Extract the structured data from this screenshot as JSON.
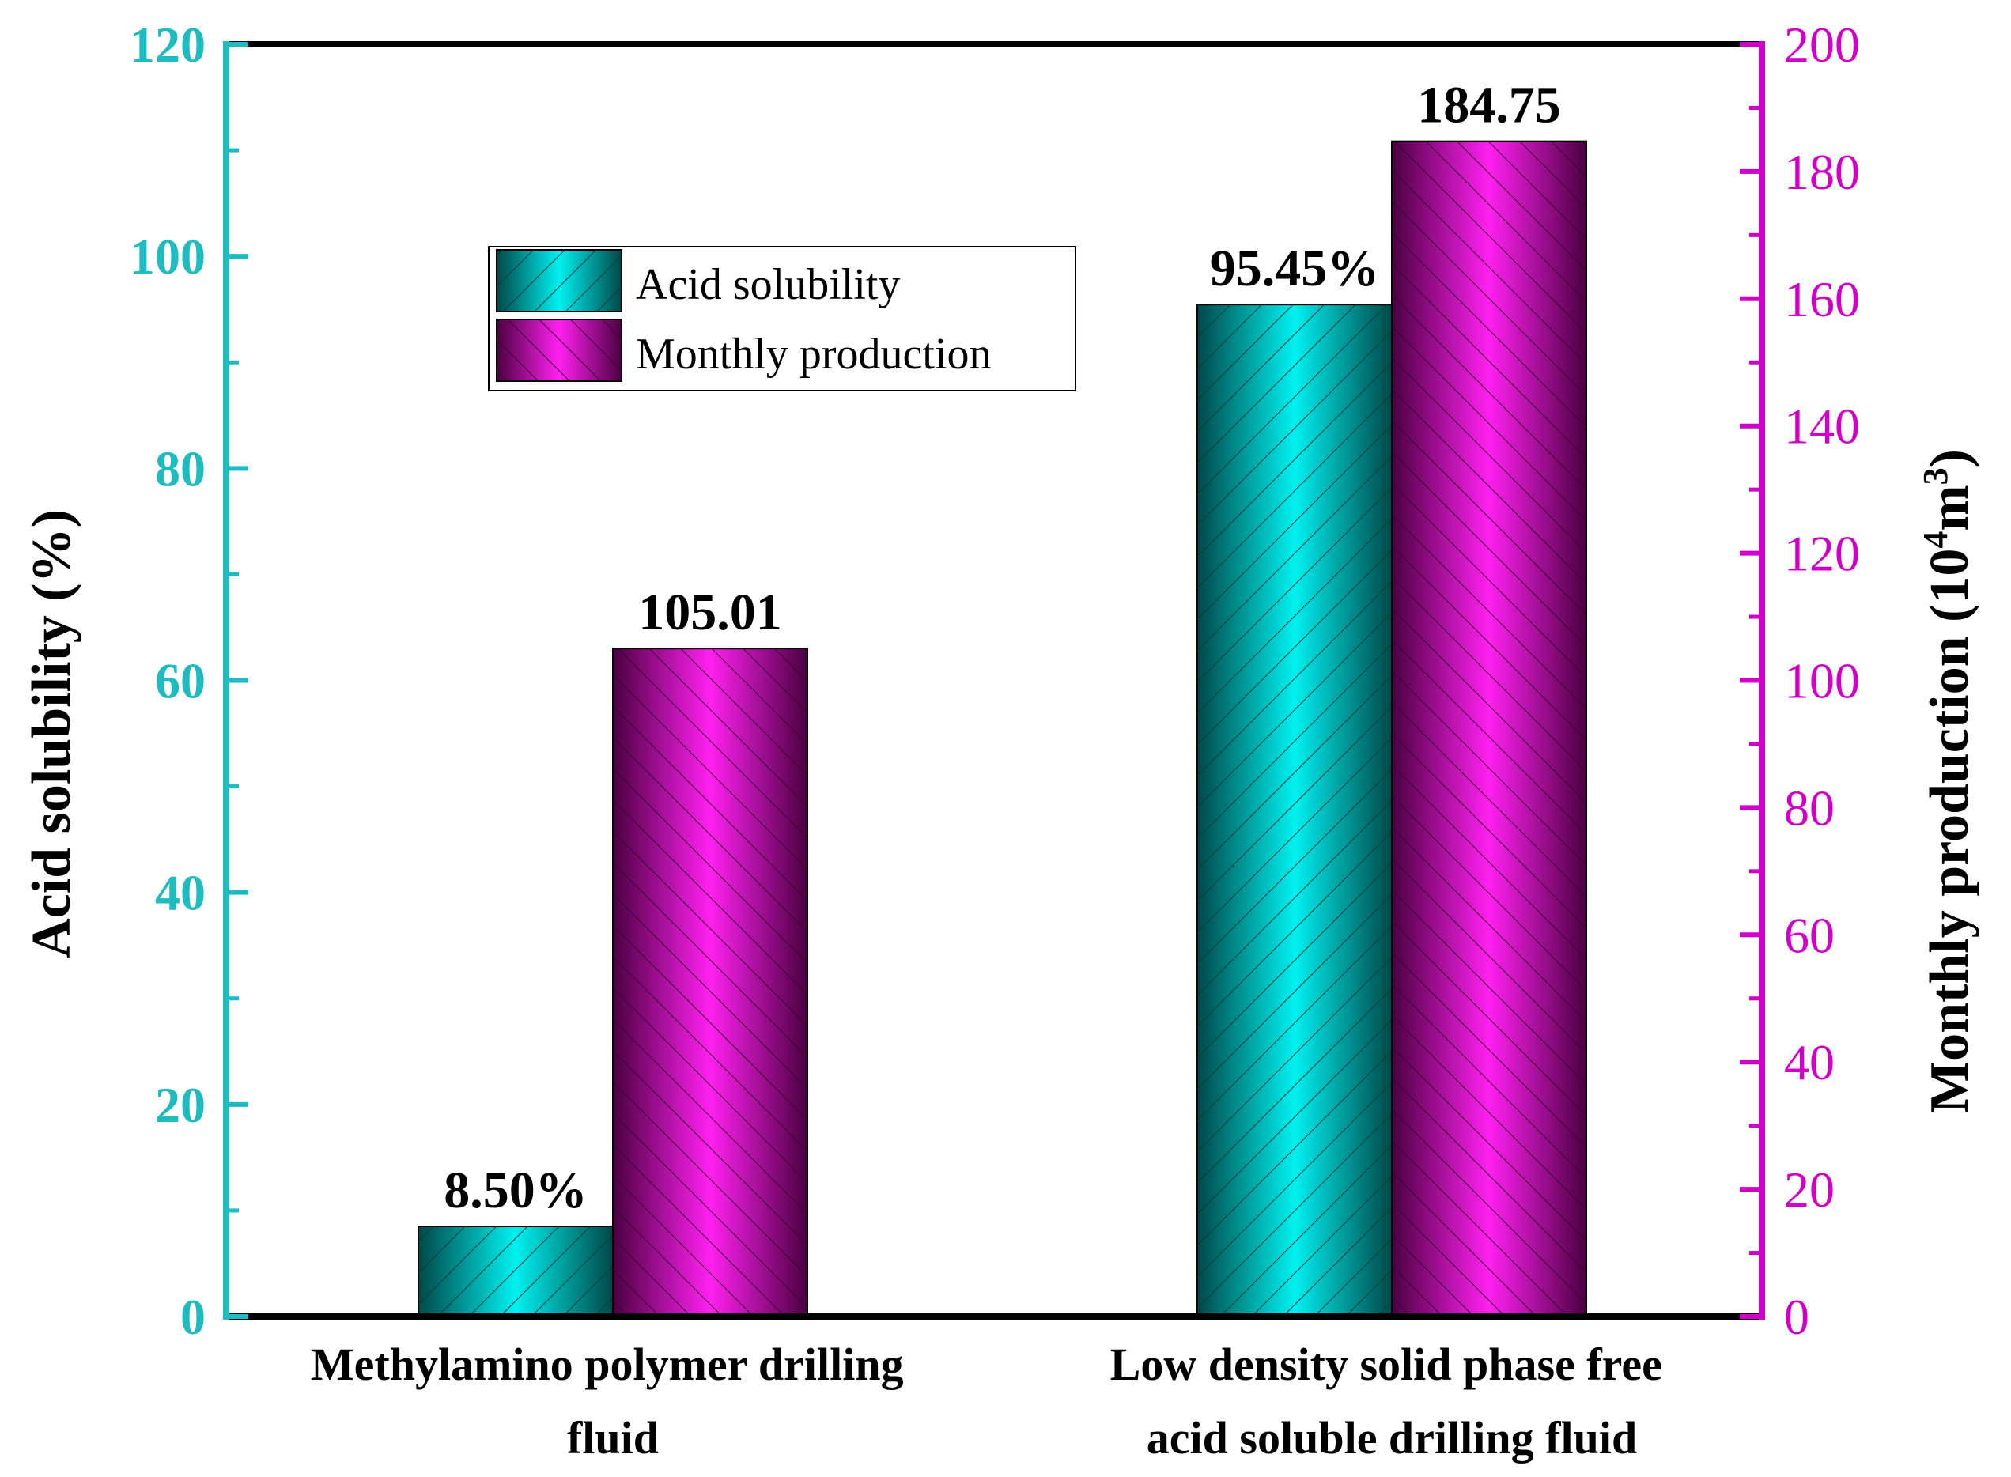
{
  "colors": {
    "left_axis": "#1ebcbf",
    "right_axis": "#d000c8",
    "acid_fill": "#00d8d8",
    "acid_hatch": "#005a5a",
    "prod_fill": "#d400c8",
    "prod_hatch": "#5a0050",
    "frame": "#000000",
    "text": "#000000"
  },
  "chart_data": {
    "type": "bar",
    "categories": [
      [
        "Methylamino polymer drilling",
        "fluid"
      ],
      [
        "Low density solid phase free",
        "acid soluble drilling fluid"
      ]
    ],
    "series": [
      {
        "name": "Acid solubility",
        "axis": "left",
        "values": [
          8.5,
          95.45
        ],
        "labels": [
          "8.50%",
          "95.45%"
        ]
      },
      {
        "name": "Monthly production",
        "axis": "right",
        "values": [
          105.01,
          184.75
        ],
        "labels": [
          "105.01",
          "184.75"
        ]
      }
    ],
    "left_axis": {
      "label": "Acid solubility (%)",
      "lim": [
        0,
        120
      ],
      "ticks": [
        "0",
        "20",
        "40",
        "60",
        "80",
        "100",
        "120"
      ]
    },
    "right_axis": {
      "label_main": "Monthly production (10",
      "label_sup1": "4",
      "label_mid": "m",
      "label_sup2": "3",
      "label_end": ")",
      "lim": [
        0,
        200
      ],
      "ticks": [
        "0",
        "20",
        "40",
        "60",
        "80",
        "100",
        "120",
        "140",
        "160",
        "180",
        "200"
      ]
    },
    "legend": {
      "position": "upper-left-center",
      "entries": [
        "Acid solubility",
        "Monthly production"
      ]
    }
  }
}
